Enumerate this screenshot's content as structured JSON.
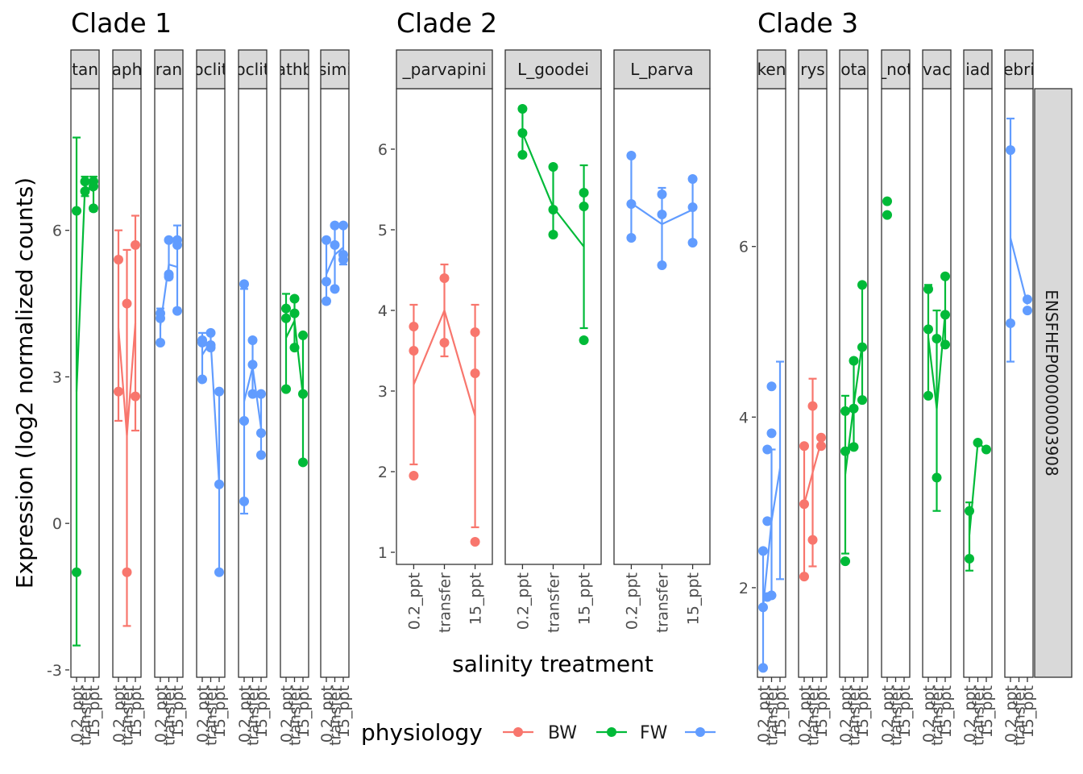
{
  "chart_data": {
    "type": "scatter",
    "ylabel": "Expression (log2 normalized counts)",
    "xlabel": "salinity treatment",
    "x_categories": [
      "0.2_ppt",
      "transfer",
      "15_ppt"
    ],
    "right_strip": "ENSFHEP00000003908",
    "legend": {
      "title": "physiology",
      "entries": [
        {
          "label": "BW",
          "color": "#F8766D"
        },
        {
          "label": "FW",
          "color": "#00BA38"
        },
        {
          "label": "",
          "color": "#619CFF"
        }
      ]
    },
    "colors": {
      "BW": "#F8766D",
      "FW": "#00BA38",
      "M": "#619CFF"
    },
    "clades": [
      {
        "title": "Clade 1",
        "ylim": [
          -3.15,
          8.9
        ],
        "yticks": [
          {
            "value": -3,
            "label": "-3"
          },
          {
            "value": 0,
            "label": "0"
          },
          {
            "value": 3,
            "label": "3"
          },
          {
            "value": 6,
            "label": "6"
          }
        ],
        "panels": [
          {
            "strip": "tan",
            "group": "FW",
            "points": [
              [
                0,
                6.4
              ],
              [
                0,
                -1.0
              ],
              [
                1,
                7.0
              ],
              [
                1,
                6.8
              ],
              [
                2,
                7.0
              ],
              [
                2,
                6.9
              ],
              [
                2,
                6.45
              ]
            ],
            "mean": [
              2.7,
              6.9,
              6.8
            ],
            "err": [
              [
                -2.5,
                7.9
              ],
              [
                6.7,
                7.1
              ],
              [
                6.4,
                7.1
              ]
            ]
          },
          {
            "strip": "aph",
            "group": "BW",
            "points": [
              [
                0,
                5.4
              ],
              [
                0,
                2.7
              ],
              [
                1,
                4.5
              ],
              [
                1,
                -1.0
              ],
              [
                2,
                5.7
              ],
              [
                2,
                2.6
              ]
            ],
            "mean": [
              4.0,
              1.8,
              4.1
            ],
            "err": [
              [
                2.1,
                6.0
              ],
              [
                -2.1,
                5.6
              ],
              [
                1.9,
                6.3
              ]
            ]
          },
          {
            "strip": "ran",
            "group": "M",
            "points": [
              [
                0,
                4.3
              ],
              [
                0,
                4.2
              ],
              [
                0,
                3.7
              ],
              [
                1,
                5.8
              ],
              [
                1,
                5.1
              ],
              [
                1,
                5.05
              ],
              [
                2,
                5.8
              ],
              [
                2,
                5.7
              ],
              [
                2,
                4.35
              ]
            ],
            "mean": [
              4.05,
              5.3,
              5.25
            ],
            "err": [
              [
                3.7,
                4.4
              ],
              [
                5.0,
                5.8
              ],
              [
                4.4,
                6.1
              ]
            ]
          },
          {
            "strip": "oclit",
            "group": "M",
            "points": [
              [
                0,
                3.75
              ],
              [
                0,
                3.7
              ],
              [
                0,
                2.95
              ],
              [
                1,
                3.9
              ],
              [
                1,
                3.65
              ],
              [
                1,
                3.6
              ],
              [
                2,
                2.7
              ],
              [
                2,
                0.8
              ],
              [
                2,
                -1.0
              ]
            ],
            "mean": [
              3.45,
              3.72,
              0.8
            ],
            "err": [
              [
                2.95,
                3.9
              ],
              [
                3.55,
                3.9
              ],
              [
                -1.0,
                2.7
              ]
            ]
          },
          {
            "strip": "oclit",
            "group": "M",
            "points": [
              [
                0,
                4.9
              ],
              [
                0,
                2.1
              ],
              [
                0,
                0.45
              ],
              [
                1,
                3.75
              ],
              [
                1,
                3.25
              ],
              [
                1,
                2.65
              ],
              [
                2,
                2.65
              ],
              [
                2,
                1.85
              ],
              [
                2,
                1.4
              ]
            ],
            "mean": [
              2.5,
              3.2,
              1.95
            ],
            "err": [
              [
                0.2,
                4.8
              ],
              [
                2.65,
                3.75
              ],
              [
                1.4,
                2.65
              ]
            ]
          },
          {
            "strip": "athb",
            "group": "FW",
            "points": [
              [
                0,
                4.4
              ],
              [
                0,
                4.2
              ],
              [
                0,
                2.75
              ],
              [
                1,
                4.6
              ],
              [
                1,
                4.3
              ],
              [
                1,
                3.6
              ],
              [
                2,
                3.85
              ],
              [
                2,
                2.65
              ],
              [
                2,
                1.25
              ]
            ],
            "mean": [
              3.8,
              4.15,
              2.6
            ],
            "err": [
              [
                2.75,
                4.7
              ],
              [
                3.6,
                4.6
              ],
              [
                1.25,
                3.85
              ]
            ]
          },
          {
            "strip": "simi",
            "group": "M",
            "points": [
              [
                0,
                5.8
              ],
              [
                0,
                4.95
              ],
              [
                0,
                4.55
              ],
              [
                1,
                6.1
              ],
              [
                1,
                5.7
              ],
              [
                1,
                4.8
              ],
              [
                2,
                6.1
              ],
              [
                2,
                5.5
              ],
              [
                2,
                5.4
              ]
            ],
            "mean": [
              5.1,
              5.5,
              5.65
            ],
            "err": [
              [
                4.5,
                5.8
              ],
              [
                4.8,
                6.1
              ],
              [
                5.3,
                6.1
              ]
            ]
          }
        ]
      },
      {
        "title": "Clade 2",
        "ylim": [
          0.85,
          6.75
        ],
        "yticks": [
          {
            "value": 1,
            "label": "1"
          },
          {
            "value": 2,
            "label": "2"
          },
          {
            "value": 3,
            "label": "3"
          },
          {
            "value": 4,
            "label": "4"
          },
          {
            "value": 5,
            "label": "5"
          },
          {
            "value": 6,
            "label": "6"
          }
        ],
        "panels": [
          {
            "strip": "_parvapini",
            "group": "BW",
            "points": [
              [
                0,
                3.8
              ],
              [
                0,
                3.5
              ],
              [
                0,
                1.95
              ],
              [
                1,
                4.4
              ],
              [
                1,
                3.6
              ],
              [
                2,
                3.73
              ],
              [
                2,
                3.22
              ],
              [
                2,
                1.13
              ]
            ],
            "mean": [
              3.08,
              4.0,
              2.69
            ],
            "err": [
              [
                2.09,
                4.07
              ],
              [
                3.43,
                4.57
              ],
              [
                1.31,
                4.07
              ]
            ]
          },
          {
            "strip": "L_goodei",
            "group": "FW",
            "points": [
              [
                0,
                6.5
              ],
              [
                0,
                6.2
              ],
              [
                0,
                5.93
              ],
              [
                1,
                5.78
              ],
              [
                1,
                5.25
              ],
              [
                1,
                4.94
              ],
              [
                2,
                5.46
              ],
              [
                2,
                5.29
              ],
              [
                2,
                3.63
              ]
            ],
            "mean": [
              6.2,
              5.28,
              4.79
            ],
            "err": [
              [
                5.93,
                6.5
              ],
              [
                4.94,
                5.78
              ],
              [
                3.78,
                5.8
              ]
            ]
          },
          {
            "strip": "L_parva",
            "group": "M",
            "points": [
              [
                0,
                5.92
              ],
              [
                0,
                5.32
              ],
              [
                0,
                4.9
              ],
              [
                1,
                5.44
              ],
              [
                1,
                5.19
              ],
              [
                1,
                4.56
              ],
              [
                2,
                5.63
              ],
              [
                2,
                5.28
              ],
              [
                2,
                4.84
              ]
            ],
            "mean": [
              5.33,
              5.07,
              5.25
            ],
            "err": [
              [
                4.9,
                5.92
              ],
              [
                4.56,
                5.52
              ],
              [
                4.84,
                5.63
              ]
            ]
          }
        ]
      },
      {
        "title": "Clade 3",
        "ylim": [
          0.95,
          7.85
        ],
        "yticks": [
          {
            "value": 2,
            "label": "2"
          },
          {
            "value": 4,
            "label": "4"
          },
          {
            "value": 6,
            "label": "6"
          }
        ],
        "panels": [
          {
            "strip": "ken",
            "group": "M",
            "points": [
              [
                0,
                2.43
              ],
              [
                0,
                1.77
              ],
              [
                0,
                1.06
              ],
              [
                0.5,
                3.62
              ],
              [
                0.5,
                2.78
              ],
              [
                0.5,
                1.89
              ],
              [
                1,
                4.36
              ],
              [
                1,
                3.81
              ],
              [
                1,
                1.91
              ]
            ],
            "mean": [
              1.77,
              2.78,
              3.4
            ],
            "err": [
              [
                1.06,
                2.43
              ],
              [
                1.89,
                3.62
              ],
              [
                2.1,
                4.65
              ]
            ]
          },
          {
            "strip": "rys",
            "group": "BW",
            "points": [
              [
                0,
                3.66
              ],
              [
                0,
                2.98
              ],
              [
                0,
                2.13
              ],
              [
                1,
                4.13
              ],
              [
                1,
                2.56
              ],
              [
                2,
                3.76
              ],
              [
                2,
                3.66
              ]
            ],
            "mean": [
              2.98,
              3.35,
              3.71
            ],
            "err": [
              [
                2.13,
                3.66
              ],
              [
                2.25,
                4.45
              ],
              [
                3.66,
                3.76
              ]
            ]
          },
          {
            "strip": "ota",
            "group": "FW",
            "points": [
              [
                0,
                4.07
              ],
              [
                0,
                3.6
              ],
              [
                0,
                2.31
              ],
              [
                1,
                4.66
              ],
              [
                1,
                4.1
              ],
              [
                1,
                3.65
              ],
              [
                2,
                5.55
              ],
              [
                2,
                4.82
              ],
              [
                2,
                4.2
              ]
            ],
            "mean": [
              3.33,
              4.14,
              4.86
            ],
            "err": [
              [
                2.4,
                4.25
              ],
              [
                3.65,
                4.66
              ],
              [
                4.2,
                5.55
              ]
            ]
          },
          {
            "strip": "_not",
            "group": "FW",
            "points": [
              [
                0,
                6.53
              ],
              [
                0,
                6.37
              ]
            ],
            "mean": [
              6.45,
              null,
              null
            ],
            "err": [
              null,
              null,
              null
            ]
          },
          {
            "strip": "vac",
            "group": "FW",
            "points": [
              [
                0,
                5.5
              ],
              [
                0,
                5.03
              ],
              [
                0,
                4.25
              ],
              [
                1,
                4.92
              ],
              [
                1,
                3.29
              ],
              [
                2,
                5.65
              ],
              [
                2,
                5.2
              ],
              [
                2,
                4.85
              ]
            ],
            "mean": [
              4.93,
              4.1,
              5.23
            ],
            "err": [
              [
                4.25,
                5.55
              ],
              [
                2.9,
                5.25
              ],
              [
                4.85,
                5.65
              ]
            ]
          },
          {
            "strip": "iad",
            "group": "FW",
            "points": [
              [
                0,
                2.9
              ],
              [
                0,
                2.34
              ],
              [
                1,
                3.7
              ],
              [
                2,
                3.62
              ]
            ],
            "mean": [
              2.62,
              3.7,
              3.62
            ],
            "err": [
              [
                2.2,
                3.0
              ],
              null,
              null
            ]
          },
          {
            "strip": "ebri",
            "group": "M",
            "points": [
              [
                0,
                7.13
              ],
              [
                0,
                5.1
              ],
              [
                2,
                5.38
              ],
              [
                2,
                5.25
              ]
            ],
            "mean": [
              6.1,
              null,
              5.32
            ],
            "err": [
              [
                4.65,
                7.5
              ],
              null,
              null
            ]
          }
        ]
      }
    ]
  }
}
